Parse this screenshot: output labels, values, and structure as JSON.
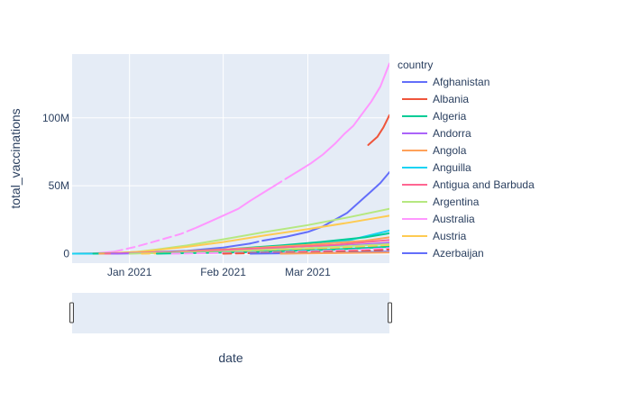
{
  "chart_data": {
    "type": "line",
    "ylabel": "total_vaccinations",
    "xlabel": "date",
    "x_range": [
      "2020-12-13",
      "2021-03-28"
    ],
    "y_range": [
      -7000000,
      147000000
    ],
    "x_ticks": [
      {
        "date": "2021-01-01",
        "label": "Jan 2021"
      },
      {
        "date": "2021-02-01",
        "label": "Feb 2021"
      },
      {
        "date": "2021-03-01",
        "label": "Mar 2021"
      }
    ],
    "y_ticks": [
      {
        "value": 0,
        "label": "0"
      },
      {
        "value": 50000000,
        "label": "50M"
      },
      {
        "value": 100000000,
        "label": "100M"
      }
    ],
    "grid": true,
    "legend": {
      "title": "country",
      "placement": "right",
      "entries": [
        {
          "name": "Afghanistan",
          "color": "#636efa"
        },
        {
          "name": "Albania",
          "color": "#EF553B"
        },
        {
          "name": "Algeria",
          "color": "#00cc96"
        },
        {
          "name": "Andorra",
          "color": "#ab63fa"
        },
        {
          "name": "Angola",
          "color": "#FFA15A"
        },
        {
          "name": "Anguilla",
          "color": "#19d3f3"
        },
        {
          "name": "Antigua and Barbuda",
          "color": "#FF6692"
        },
        {
          "name": "Argentina",
          "color": "#B6E880"
        },
        {
          "name": "Australia",
          "color": "#FF97FF"
        },
        {
          "name": "Austria",
          "color": "#FECB52"
        },
        {
          "name": "Azerbaijan",
          "color": "#636efa"
        }
      ]
    },
    "series": [
      {
        "color": "#FF97FF",
        "dash": "solid",
        "points": [
          [
            "2020-12-13",
            0
          ],
          [
            "2020-12-20",
            150000
          ],
          [
            "2020-12-27",
            1500000
          ]
        ]
      },
      {
        "color": "#FF97FF",
        "dash": "dash",
        "points": [
          [
            "2020-12-27",
            1500000
          ],
          [
            "2021-01-03",
            5000000
          ],
          [
            "2021-01-11",
            10000000
          ],
          [
            "2021-01-18",
            14500000
          ],
          [
            "2021-01-23",
            19000000
          ]
        ]
      },
      {
        "color": "#FF97FF",
        "dash": "solid",
        "points": [
          [
            "2021-01-23",
            19000000
          ],
          [
            "2021-01-27",
            23000000
          ],
          [
            "2021-02-01",
            28000000
          ],
          [
            "2021-02-06",
            33000000
          ],
          [
            "2021-02-10",
            39000000
          ],
          [
            "2021-02-14",
            44500000
          ],
          [
            "2021-02-18",
            50000000
          ]
        ]
      },
      {
        "color": "#FF97FF",
        "dash": "dash",
        "points": [
          [
            "2021-02-18",
            50000000
          ],
          [
            "2021-02-22",
            55500000
          ]
        ]
      },
      {
        "color": "#FF97FF",
        "dash": "solid",
        "points": [
          [
            "2021-02-22",
            55500000
          ],
          [
            "2021-02-26",
            61000000
          ],
          [
            "2021-03-02",
            66500000
          ],
          [
            "2021-03-06",
            73000000
          ],
          [
            "2021-03-10",
            81000000
          ],
          [
            "2021-03-13",
            88000000
          ],
          [
            "2021-03-16",
            94000000
          ],
          [
            "2021-03-19",
            103000000
          ],
          [
            "2021-03-22",
            112000000
          ],
          [
            "2021-03-25",
            123000000
          ],
          [
            "2021-03-28",
            140000000
          ]
        ]
      },
      {
        "color": "#636efa",
        "dash": "solid",
        "points": [
          [
            "2020-12-13",
            0
          ],
          [
            "2021-01-01",
            500000
          ],
          [
            "2021-01-20",
            2000000
          ],
          [
            "2021-02-01",
            4500000
          ],
          [
            "2021-02-10",
            7500000
          ]
        ]
      },
      {
        "color": "#636efa",
        "dash": "dash",
        "points": [
          [
            "2021-02-10",
            7500000
          ],
          [
            "2021-02-14",
            9500000
          ]
        ]
      },
      {
        "color": "#636efa",
        "dash": "solid",
        "points": [
          [
            "2021-02-14",
            9500000
          ],
          [
            "2021-02-22",
            12500000
          ],
          [
            "2021-03-01",
            16000000
          ],
          [
            "2021-03-06",
            20000000
          ],
          [
            "2021-03-10",
            25000000
          ],
          [
            "2021-03-14",
            30000000
          ],
          [
            "2021-03-18",
            38000000
          ],
          [
            "2021-03-22",
            46000000
          ],
          [
            "2021-03-25",
            52000000
          ],
          [
            "2021-03-28",
            60000000
          ]
        ]
      },
      {
        "color": "#EF553B",
        "dash": "solid",
        "points": [
          [
            "2021-03-21",
            80000000
          ],
          [
            "2021-03-24",
            86000000
          ],
          [
            "2021-03-26",
            93000000
          ],
          [
            "2021-03-28",
            102000000
          ]
        ]
      },
      {
        "color": "#B6E880",
        "dash": "solid",
        "points": [
          [
            "2020-12-13",
            0
          ],
          [
            "2020-12-20",
            50000
          ],
          [
            "2020-12-27",
            300000
          ],
          [
            "2021-01-03",
            1200000
          ],
          [
            "2021-01-10",
            3000000
          ],
          [
            "2021-01-20",
            6000000
          ],
          [
            "2021-02-01",
            10500000
          ],
          [
            "2021-02-15",
            16000000
          ],
          [
            "2021-03-01",
            21000000
          ],
          [
            "2021-03-15",
            27000000
          ],
          [
            "2021-03-28",
            33000000
          ]
        ]
      },
      {
        "color": "#FECB52",
        "dash": "solid",
        "points": [
          [
            "2020-12-13",
            0
          ],
          [
            "2020-12-24",
            200000
          ],
          [
            "2021-01-05",
            1500000
          ],
          [
            "2021-01-20",
            5000000
          ],
          [
            "2021-02-01",
            8500000
          ],
          [
            "2021-02-15",
            13500000
          ],
          [
            "2021-03-01",
            18000000
          ],
          [
            "2021-03-15",
            23000000
          ],
          [
            "2021-03-28",
            28000000
          ]
        ]
      },
      {
        "color": "#19d3f3",
        "dash": "solid",
        "points": [
          [
            "2020-12-13",
            0
          ],
          [
            "2020-12-28",
            0
          ],
          [
            "2021-01-05",
            500000
          ],
          [
            "2021-01-25",
            1500000
          ],
          [
            "2021-02-15",
            3500000
          ],
          [
            "2021-03-01",
            6000000
          ],
          [
            "2021-03-15",
            10000000
          ],
          [
            "2021-03-28",
            17000000
          ]
        ]
      },
      {
        "color": "#00cc96",
        "dash": "solid",
        "points": [
          [
            "2020-12-20",
            0
          ],
          [
            "2021-01-10",
            800000
          ],
          [
            "2021-02-01",
            3000000
          ],
          [
            "2021-02-20",
            6000000
          ],
          [
            "2021-03-05",
            8500000
          ],
          [
            "2021-03-20",
            12000000
          ],
          [
            "2021-03-28",
            15000000
          ]
        ]
      },
      {
        "color": "#FFA15A",
        "dash": "solid",
        "points": [
          [
            "2020-12-22",
            0
          ],
          [
            "2021-01-15",
            1200000
          ],
          [
            "2021-02-10",
            4000000
          ],
          [
            "2021-03-01",
            6500000
          ],
          [
            "2021-03-20",
            9500000
          ],
          [
            "2021-03-28",
            12000000
          ]
        ]
      },
      {
        "color": "#FF6692",
        "dash": "solid",
        "points": [
          [
            "2020-12-24",
            0
          ],
          [
            "2021-01-20",
            1500000
          ],
          [
            "2021-02-15",
            4000000
          ],
          [
            "2021-03-10",
            6500000
          ],
          [
            "2021-03-28",
            10000000
          ]
        ]
      },
      {
        "color": "#ab63fa",
        "dash": "solid",
        "points": [
          [
            "2020-12-26",
            0
          ],
          [
            "2021-01-25",
            1000000
          ],
          [
            "2021-02-25",
            3500000
          ],
          [
            "2021-03-28",
            8000000
          ]
        ]
      },
      {
        "color": "#B6E880",
        "dash": "solid",
        "points": [
          [
            "2021-01-01",
            0
          ],
          [
            "2021-02-01",
            1500000
          ],
          [
            "2021-03-01",
            4000000
          ],
          [
            "2021-03-28",
            7000000
          ]
        ]
      },
      {
        "color": "#FECB52",
        "dash": "dash",
        "points": [
          [
            "2021-01-05",
            0
          ],
          [
            "2021-02-05",
            1200000
          ],
          [
            "2021-03-05",
            3500000
          ],
          [
            "2021-03-28",
            6000000
          ]
        ]
      },
      {
        "color": "#00cc96",
        "dash": "solid",
        "points": [
          [
            "2021-01-10",
            0
          ],
          [
            "2021-02-10",
            1000000
          ],
          [
            "2021-03-10",
            3000000
          ],
          [
            "2021-03-28",
            5000000
          ]
        ]
      },
      {
        "color": "#FF97FF",
        "dash": "dash",
        "points": [
          [
            "2021-01-15",
            0
          ],
          [
            "2021-02-15",
            800000
          ],
          [
            "2021-03-15",
            2500000
          ],
          [
            "2021-03-28",
            4000000
          ]
        ]
      },
      {
        "color": "#EF553B",
        "dash": "dash",
        "points": [
          [
            "2021-02-01",
            0
          ],
          [
            "2021-03-01",
            1000000
          ],
          [
            "2021-03-20",
            2000000
          ],
          [
            "2021-03-28",
            3000000
          ]
        ]
      },
      {
        "color": "#636efa",
        "dash": "solid",
        "points": [
          [
            "2021-02-10",
            0
          ],
          [
            "2021-03-10",
            600000
          ],
          [
            "2021-03-28",
            1500000
          ]
        ]
      },
      {
        "color": "#FFA15A",
        "dash": "solid",
        "points": [
          [
            "2021-02-20",
            0
          ],
          [
            "2021-03-28",
            800000
          ]
        ]
      }
    ]
  }
}
